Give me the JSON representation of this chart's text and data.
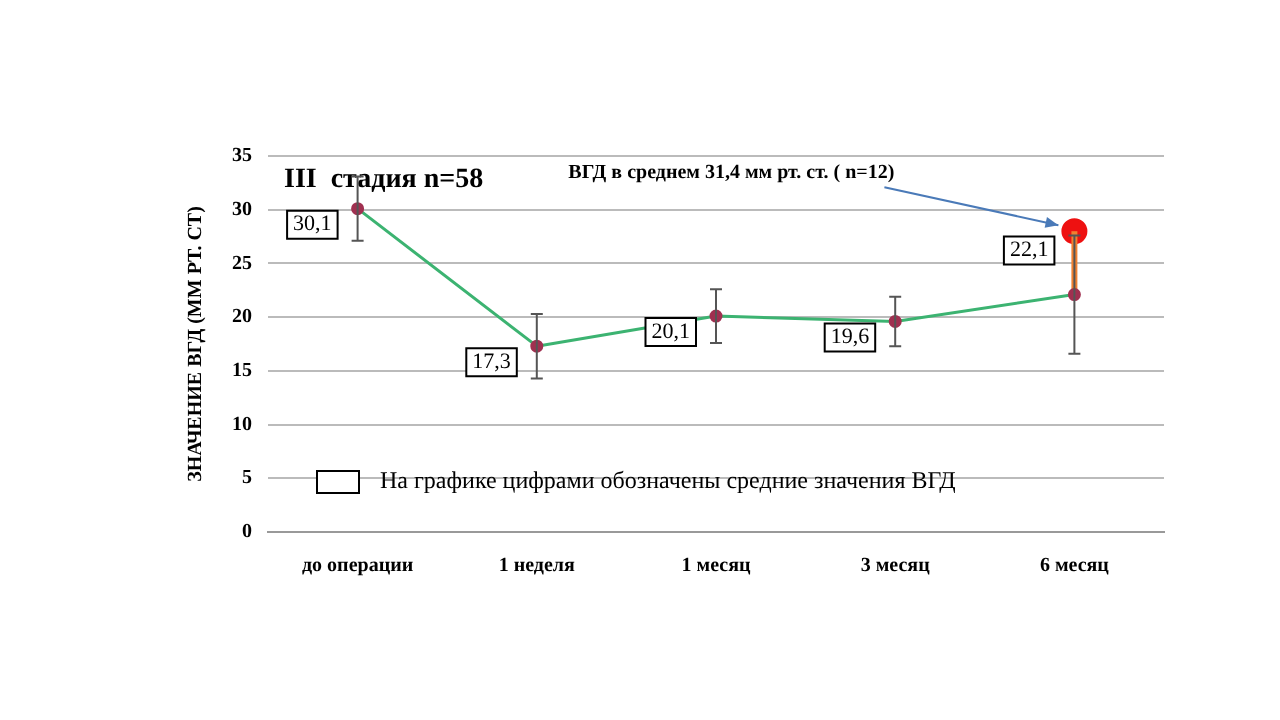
{
  "chart_data": {
    "type": "line",
    "title": "III  стадия n=58",
    "ylabel": "ЗНАЧЕНИЕ ВГД (ММ РТ. СТ)",
    "categories": [
      "до операции",
      "1 неделя",
      "1 месяц",
      "3 месяц",
      "6 месяц"
    ],
    "series": [
      {
        "color": "#3cb371",
        "values": [
          30.1,
          17.3,
          20.1,
          19.6,
          22.1
        ],
        "errors": [
          3,
          3,
          2.5,
          2.3,
          5.5
        ],
        "marker": "circle",
        "value_labels": [
          "30,1",
          "17,3",
          "20,1",
          "19,6",
          "22,1"
        ]
      },
      {
        "type": "line",
        "color": "#f08030",
        "x": [
          "6 месяц",
          "6 месяц"
        ],
        "values": [
          22.1,
          28
        ],
        "marker": "none"
      },
      {
        "type": "scatter",
        "color": "#ee1111",
        "x": [
          "6 месяц"
        ],
        "values": [
          28
        ],
        "marker": "circle"
      }
    ],
    "ylim": [
      0,
      35
    ],
    "yticks": [
      0,
      5,
      10,
      15,
      20,
      25,
      30,
      35
    ],
    "grid": "y",
    "legend": false,
    "annotations": [
      {
        "text": "ВГД в среднем 31,4 мм рт. ст. ( n=12)",
        "x": "6 месяц",
        "y": 28
      },
      "На графике цифрами обозначены средние значения ВГД"
    ]
  }
}
